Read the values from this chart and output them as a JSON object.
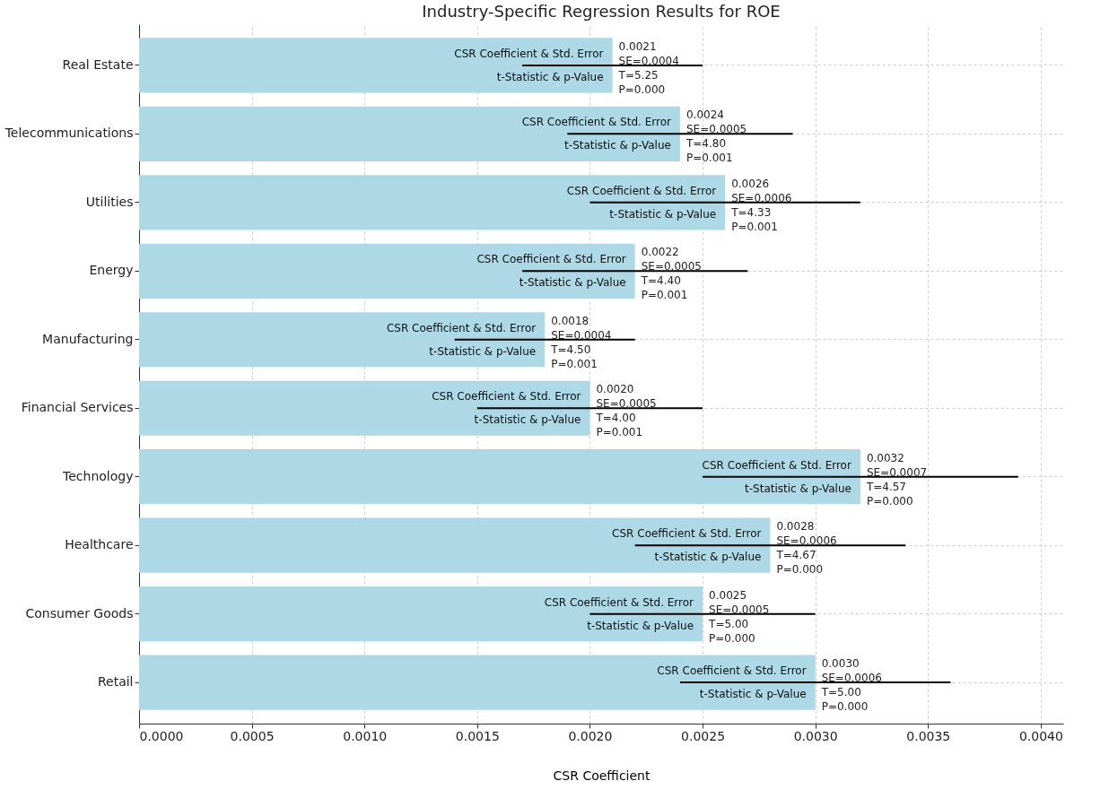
{
  "chart_data": {
    "type": "bar",
    "orientation": "horizontal",
    "title": "Industry-Specific Regression Results for ROE",
    "xlabel": "CSR Coefficient",
    "categories": [
      "Real Estate",
      "Telecommunications",
      "Utilities",
      "Energy",
      "Manufacturing",
      "Financial Services",
      "Technology",
      "Healthcare",
      "Consumer Goods",
      "Retail"
    ],
    "values": [
      0.0021,
      0.0024,
      0.0026,
      0.0022,
      0.0018,
      0.002,
      0.0032,
      0.0028,
      0.0025,
      0.003
    ],
    "errors": [
      0.0004,
      0.0005,
      0.0006,
      0.0005,
      0.0004,
      0.0005,
      0.0007,
      0.0006,
      0.0005,
      0.0006
    ],
    "value_labels": [
      "0.0021\nSE=0.0004\nT=5.25\nP=0.000",
      "0.0024\nSE=0.0005\nT=4.80\nP=0.001",
      "0.0026\nSE=0.0006\nT=4.33\nP=0.001",
      "0.0022\nSE=0.0005\nT=4.40\nP=0.001",
      "0.0018\nSE=0.0004\nT=4.50\nP=0.001",
      "0.0020\nSE=0.0005\nT=4.00\nP=0.001",
      "0.0032\nSE=0.0007\nT=4.57\nP=0.000",
      "0.0028\nSE=0.0006\nT=4.67\nP=0.000",
      "0.0025\nSE=0.0005\nT=5.00\nP=0.000",
      "0.0030\nSE=0.0006\nT=5.00\nP=0.000"
    ],
    "color": "#add8e6",
    "xlim": [
      0,
      0.0041
    ],
    "xticks": [
      {
        "value": 0,
        "label": "0.0000"
      },
      {
        "value": 0.0005,
        "label": "0.0005"
      },
      {
        "value": 0.001,
        "label": "0.0010"
      },
      {
        "value": 0.0015,
        "label": "0.0015"
      },
      {
        "value": 0.002,
        "label": "0.0020"
      },
      {
        "value": 0.0025,
        "label": "0.0025"
      },
      {
        "value": 0.003,
        "label": "0.0030"
      },
      {
        "value": 0.0035,
        "label": "0.0035"
      },
      {
        "value": 0.004,
        "label": "0.0040"
      }
    ],
    "grid": true,
    "annotations": [
      {
        "text": "CSR Coefficient & Std. Error",
        "x": 0.0021,
        "y": "Real Estate"
      },
      {
        "text": "t-Statistic & p-Value",
        "x": 0.0021,
        "y": "Real Estate"
      },
      {
        "text": "CSR Coefficient & Std. Error",
        "x": 0.0024,
        "y": "Telecommunications"
      },
      {
        "text": "t-Statistic & p-Value",
        "x": 0.0024,
        "y": "Telecommunications"
      },
      {
        "text": "CSR Coefficient & Std. Error",
        "x": 0.0026,
        "y": "Utilities"
      },
      {
        "text": "t-Statistic & p-Value",
        "x": 0.0026,
        "y": "Utilities"
      },
      {
        "text": "CSR Coefficient & Std. Error",
        "x": 0.0022,
        "y": "Energy"
      },
      {
        "text": "t-Statistic & p-Value",
        "x": 0.0022,
        "y": "Energy"
      },
      {
        "text": "CSR Coefficient & Std. Error",
        "x": 0.0018,
        "y": "Manufacturing"
      },
      {
        "text": "t-Statistic & p-Value",
        "x": 0.0018,
        "y": "Manufacturing"
      },
      {
        "text": "CSR Coefficient & Std. Error",
        "x": 0.002,
        "y": "Financial Services"
      },
      {
        "text": "t-Statistic & p-Value",
        "x": 0.002,
        "y": "Financial Services"
      },
      {
        "text": "CSR Coefficient & Std. Error",
        "x": 0.0032,
        "y": "Technology"
      },
      {
        "text": "t-Statistic & p-Value",
        "x": 0.0032,
        "y": "Technology"
      },
      {
        "text": "CSR Coefficient & Std. Error",
        "x": 0.0028,
        "y": "Healthcare"
      },
      {
        "text": "t-Statistic & p-Value",
        "x": 0.0028,
        "y": "Healthcare"
      },
      {
        "text": "CSR Coefficient & Std. Error",
        "x": 0.0025,
        "y": "Consumer Goods"
      },
      {
        "text": "t-Statistic & p-Value",
        "x": 0.0025,
        "y": "Consumer Goods"
      },
      {
        "text": "CSR Coefficient & Std. Error",
        "x": 0.003,
        "y": "Retail"
      },
      {
        "text": "t-Statistic & p-Value",
        "x": 0.003,
        "y": "Retail"
      }
    ]
  }
}
